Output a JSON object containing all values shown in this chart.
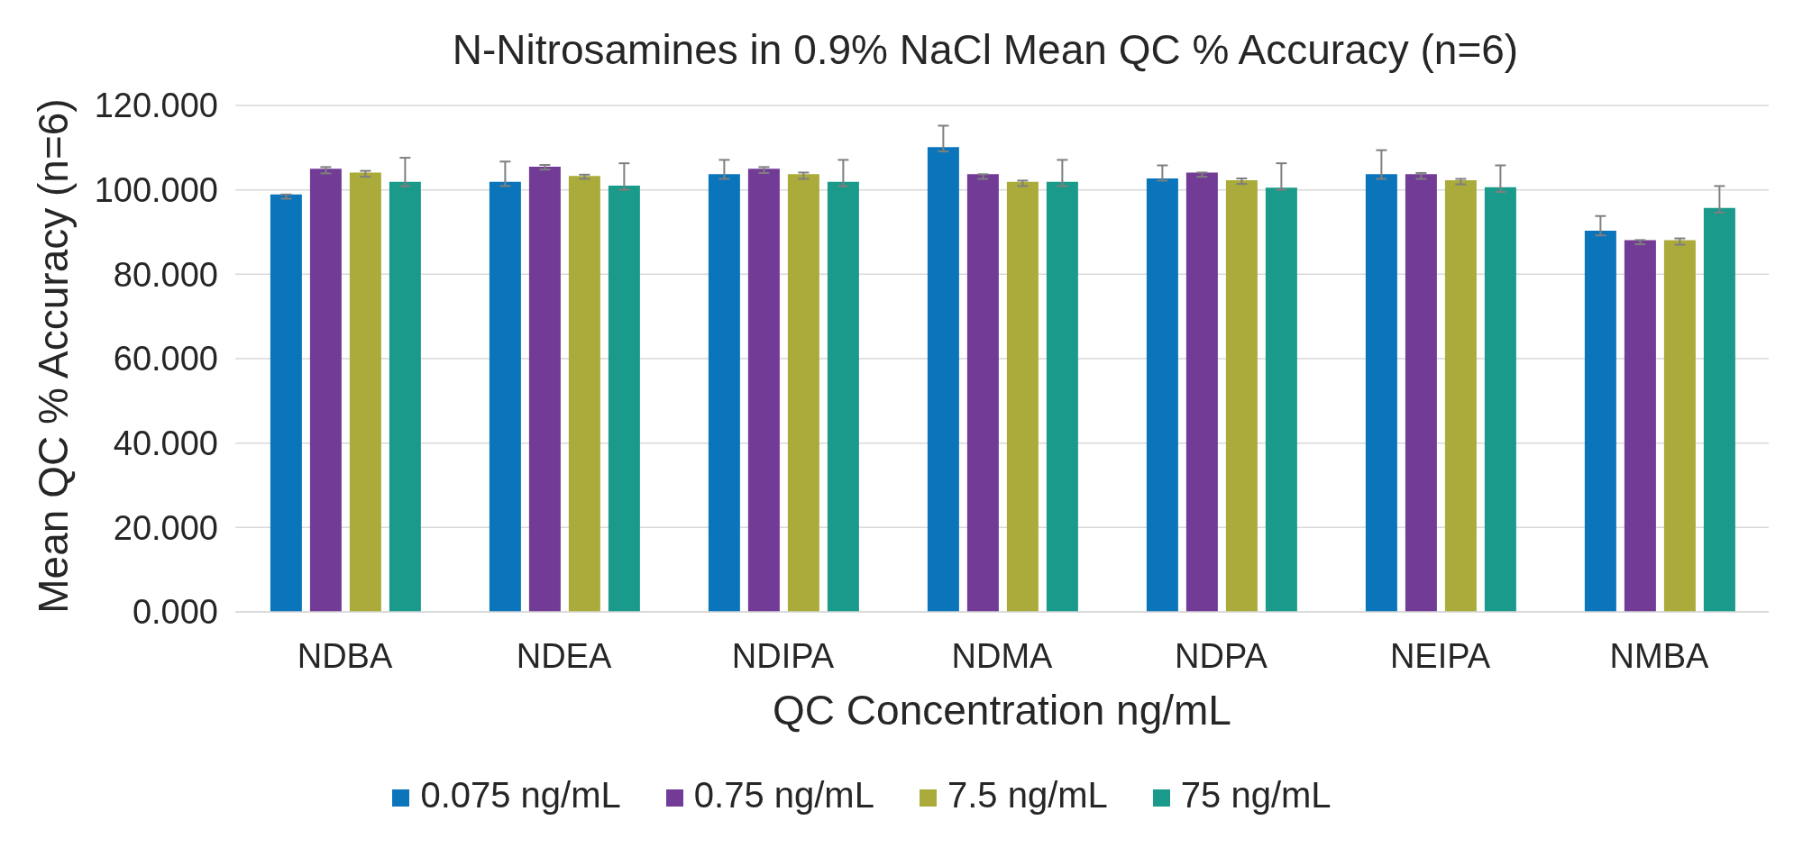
{
  "chart_data": {
    "type": "bar",
    "title": "N-Nitrosamines in 0.9% NaCl Mean QC % Accuracy (n=6)",
    "xlabel": "QC Concentration ng/mL",
    "ylabel": "Mean QC % Accuracy (n=6)",
    "categories": [
      "NDBA",
      "NDEA",
      "NDIPA",
      "NDMA",
      "NDPA",
      "NEIPA",
      "NMBA"
    ],
    "series": [
      {
        "name": "0.075 ng/mL",
        "color": "#0b75bc",
        "values": [
          98.9,
          101.9,
          103.7,
          110.1,
          102.7,
          103.7,
          90.3
        ],
        "errors": [
          [
            97.9,
            98.9
          ],
          [
            100.9,
            106.7
          ],
          [
            102.6,
            107.1
          ],
          [
            109.1,
            115.2
          ],
          [
            102.2,
            105.8
          ],
          [
            102.6,
            109.4
          ],
          [
            89.2,
            93.8
          ]
        ]
      },
      {
        "name": "0.75 ng/mL",
        "color": "#713b96",
        "values": [
          105.0,
          105.5,
          105.0,
          103.7,
          104.1,
          103.7,
          88.1
        ],
        "errors": [
          [
            103.9,
            105.4
          ],
          [
            104.8,
            105.9
          ],
          [
            104.0,
            105.4
          ],
          [
            102.6,
            103.7
          ],
          [
            103.1,
            104.1
          ],
          [
            102.6,
            104.0
          ],
          [
            87.1,
            88.1
          ]
        ]
      },
      {
        "name": "7.5 ng/mL",
        "color": "#aaab3b",
        "values": [
          104.1,
          103.3,
          103.7,
          101.9,
          102.3,
          102.3,
          88.1
        ],
        "errors": [
          [
            103.1,
            104.5
          ],
          [
            102.6,
            103.6
          ],
          [
            102.6,
            104.1
          ],
          [
            100.9,
            102.2
          ],
          [
            101.4,
            102.7
          ],
          [
            101.3,
            102.6
          ],
          [
            87.0,
            88.5
          ]
        ]
      },
      {
        "name": "75 ng/mL",
        "color": "#1a9a8a",
        "values": [
          101.9,
          101.0,
          101.9,
          101.9,
          100.5,
          100.6,
          95.7
        ],
        "errors": [
          [
            100.9,
            107.6
          ],
          [
            100.0,
            106.3
          ],
          [
            100.9,
            107.1
          ],
          [
            100.9,
            107.1
          ],
          [
            100.0,
            106.3
          ],
          [
            99.5,
            105.8
          ],
          [
            94.6,
            100.9
          ]
        ]
      }
    ],
    "ylim": [
      0,
      120
    ],
    "yticks": [
      {
        "value": 0,
        "label": "0.000"
      },
      {
        "value": 20,
        "label": "20.000"
      },
      {
        "value": 40,
        "label": "40.000"
      },
      {
        "value": 60,
        "label": "60.000"
      },
      {
        "value": 80,
        "label": "80.000"
      },
      {
        "value": 100,
        "label": "100.000"
      },
      {
        "value": 120,
        "label": "120.000"
      }
    ],
    "grid": "y",
    "legend": "bottom"
  }
}
